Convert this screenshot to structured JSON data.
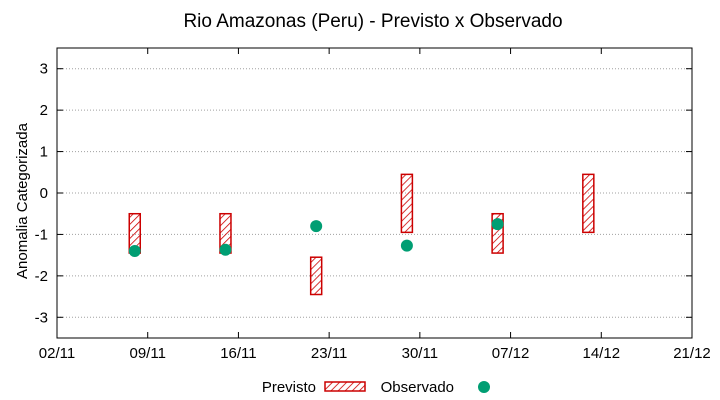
{
  "chart_data": {
    "type": "range-bar-scatter",
    "title": "Rio Amazonas (Peru) - Previsto x Observado",
    "xlabel": "",
    "ylabel": "Anomalia Categorizada",
    "xlim": [
      0,
      49
    ],
    "ylim": [
      -3.5,
      3.5
    ],
    "grid": "horizontal-dotted",
    "x_ticks": [
      {
        "x": 0,
        "label": "02/11"
      },
      {
        "x": 7,
        "label": "09/11"
      },
      {
        "x": 14,
        "label": "16/11"
      },
      {
        "x": 21,
        "label": "23/11"
      },
      {
        "x": 28,
        "label": "30/11"
      },
      {
        "x": 35,
        "label": "07/12"
      },
      {
        "x": 42,
        "label": "14/12"
      },
      {
        "x": 49,
        "label": "21/12"
      }
    ],
    "y_ticks": [
      {
        "y": 3,
        "label": "3"
      },
      {
        "y": 2,
        "label": "2"
      },
      {
        "y": 1,
        "label": "1"
      },
      {
        "y": 0,
        "label": "0"
      },
      {
        "y": -1,
        "label": "-1"
      },
      {
        "y": -2,
        "label": "-2"
      },
      {
        "y": -3,
        "label": "-3"
      }
    ],
    "series": [
      {
        "name": "Previsto",
        "style": "hatched-box",
        "color": "#cc0000",
        "points": [
          {
            "x": 6,
            "low": -1.45,
            "high": -0.5
          },
          {
            "x": 13,
            "low": -1.45,
            "high": -0.5
          },
          {
            "x": 20,
            "low": -2.45,
            "high": -1.55
          },
          {
            "x": 27,
            "low": -0.95,
            "high": 0.45
          },
          {
            "x": 34,
            "low": -1.45,
            "high": -0.5
          },
          {
            "x": 41,
            "low": -0.95,
            "high": 0.45
          }
        ]
      },
      {
        "name": "Observado",
        "style": "circle",
        "color": "#009e73",
        "points": [
          {
            "x": 6,
            "y": -1.4
          },
          {
            "x": 13,
            "y": -1.37
          },
          {
            "x": 20,
            "y": -0.8
          },
          {
            "x": 27,
            "y": -1.27
          },
          {
            "x": 34,
            "y": -0.75
          }
        ]
      }
    ],
    "legend": {
      "placement": "bottom-center",
      "labels": [
        "Previsto",
        "Observado"
      ]
    }
  }
}
